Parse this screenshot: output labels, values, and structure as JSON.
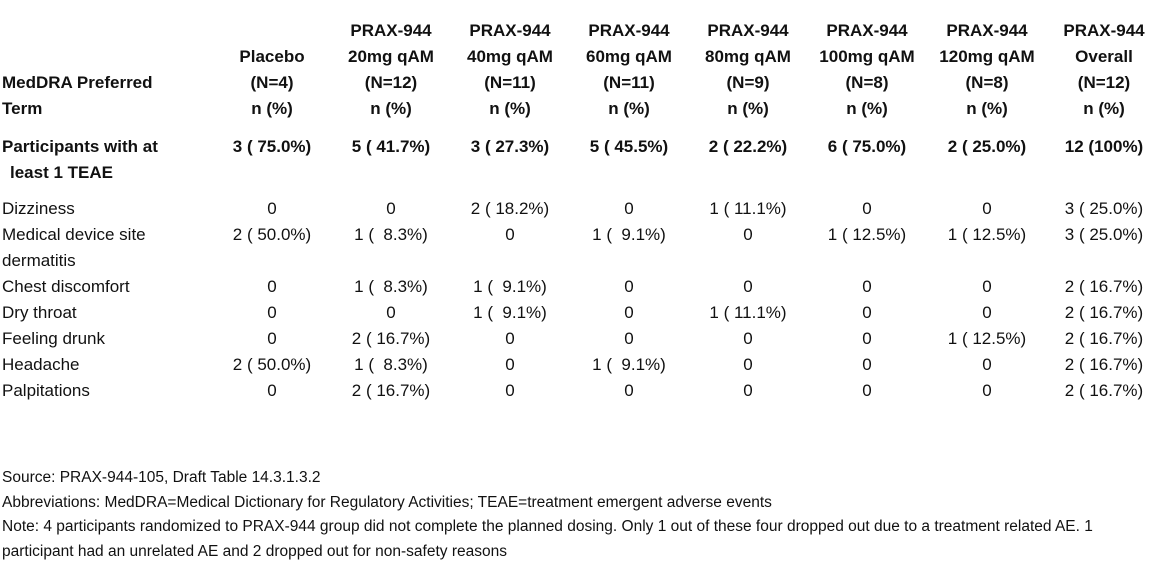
{
  "header": {
    "term_label_line1": "MedDRA Preferred",
    "term_label_line2": "Term",
    "columns": [
      {
        "lines": [
          "Placebo",
          "(N=4)",
          "n (%)"
        ]
      },
      {
        "lines": [
          "PRAX-944",
          "20mg qAM",
          "(N=12)",
          "n (%)"
        ]
      },
      {
        "lines": [
          "PRAX-944",
          "40mg qAM",
          "(N=11)",
          "n (%)"
        ]
      },
      {
        "lines": [
          "PRAX-944",
          "60mg qAM",
          "(N=11)",
          "n (%)"
        ]
      },
      {
        "lines": [
          "PRAX-944",
          "80mg qAM",
          "(N=9)",
          "n (%)"
        ]
      },
      {
        "lines": [
          "PRAX-944",
          "100mg qAM",
          "(N=8)",
          "n (%)"
        ]
      },
      {
        "lines": [
          "PRAX-944",
          "120mg qAM",
          "(N=8)",
          "n (%)"
        ]
      },
      {
        "lines": [
          "PRAX-944",
          "Overall",
          "(N=12)",
          "n (%)"
        ]
      }
    ]
  },
  "summary": {
    "label_line1": "Participants with at",
    "label_line2": "least 1 TEAE",
    "values": [
      "3 ( 75.0%)",
      "5 ( 41.7%)",
      "3 ( 27.3%)",
      "5 ( 45.5%)",
      "2 ( 22.2%)",
      "6 ( 75.0%)",
      "2 ( 25.0%)",
      "12 (100%)"
    ]
  },
  "rows": [
    {
      "term": "Dizziness",
      "values": [
        "0",
        "0",
        "2 ( 18.2%)",
        "0",
        "1 ( 11.1%)",
        "0",
        "0",
        "3 ( 25.0%)"
      ]
    },
    {
      "term": "Medical device site dermatitis",
      "values": [
        "2 ( 50.0%)",
        "1 (  8.3%)",
        "0",
        "1 (  9.1%)",
        "0",
        "1 ( 12.5%)",
        "1 ( 12.5%)",
        "3 ( 25.0%)"
      ]
    },
    {
      "term": "Chest discomfort",
      "values": [
        "0",
        "1 (  8.3%)",
        "1 (  9.1%)",
        "0",
        "0",
        "0",
        "0",
        "2 ( 16.7%)"
      ]
    },
    {
      "term": "Dry throat",
      "values": [
        "0",
        "0",
        "1 (  9.1%)",
        "0",
        "1 ( 11.1%)",
        "0",
        "0",
        "2 ( 16.7%)"
      ]
    },
    {
      "term": "Feeling drunk",
      "values": [
        "0",
        "2 ( 16.7%)",
        "0",
        "0",
        "0",
        "0",
        "1 ( 12.5%)",
        "2 ( 16.7%)"
      ]
    },
    {
      "term": "Headache",
      "values": [
        "2 ( 50.0%)",
        "1 (  8.3%)",
        "0",
        "1 (  9.1%)",
        "0",
        "0",
        "0",
        "2 ( 16.7%)"
      ]
    },
    {
      "term": "Palpitations",
      "values": [
        "0",
        "2 ( 16.7%)",
        "0",
        "0",
        "0",
        "0",
        "0",
        "2 ( 16.7%)"
      ]
    }
  ],
  "notes": {
    "source": "Source: PRAX-944-105, Draft Table 14.3.1.3.2",
    "abbreviations": "Abbreviations: MedDRA=Medical Dictionary for Regulatory Activities; TEAE=treatment emergent adverse events",
    "note": "Note: 4 participants randomized to PRAX-944 group did not complete the planned dosing. Only 1 out of these four dropped out due to a treatment related AE.  1 participant had an unrelated AE and 2 dropped out for non-safety reasons"
  }
}
